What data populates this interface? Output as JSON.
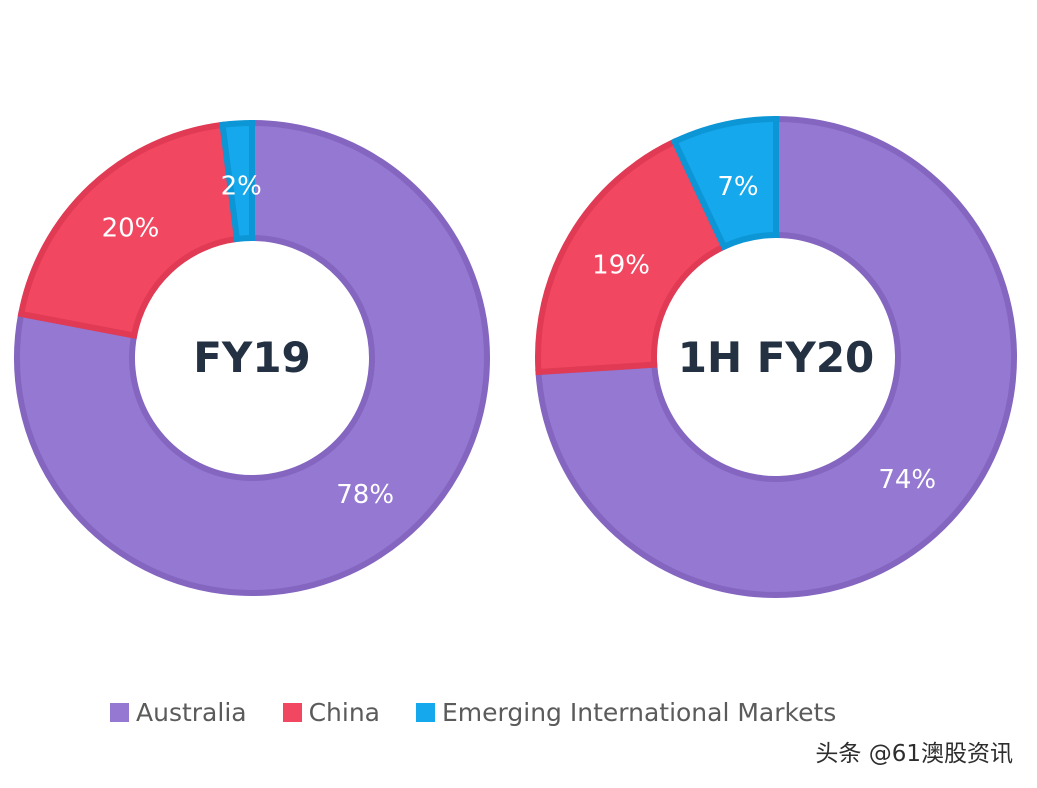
{
  "chart_data": [
    {
      "type": "pie",
      "subtype": "donut",
      "title": "FY19",
      "categories": [
        "Australia",
        "China",
        "Emerging International Markets"
      ],
      "values": [
        78,
        20,
        2
      ],
      "labels": [
        "78%",
        "20%",
        "2%"
      ],
      "unit": "%"
    },
    {
      "type": "pie",
      "subtype": "donut",
      "title": "1H FY20",
      "categories": [
        "Australia",
        "China",
        "Emerging International Markets"
      ],
      "values": [
        74,
        19,
        7
      ],
      "labels": [
        "74%",
        "19%",
        "7%"
      ],
      "unit": "%"
    }
  ],
  "legend": {
    "placement": "bottom",
    "items": [
      {
        "label": "Australia",
        "color": "#9478D2"
      },
      {
        "label": "China",
        "color": "#F24760"
      },
      {
        "label": "Emerging International Markets",
        "color": "#16A8EC"
      }
    ]
  },
  "watermark": {
    "text": "头条 @61澳股资讯"
  }
}
